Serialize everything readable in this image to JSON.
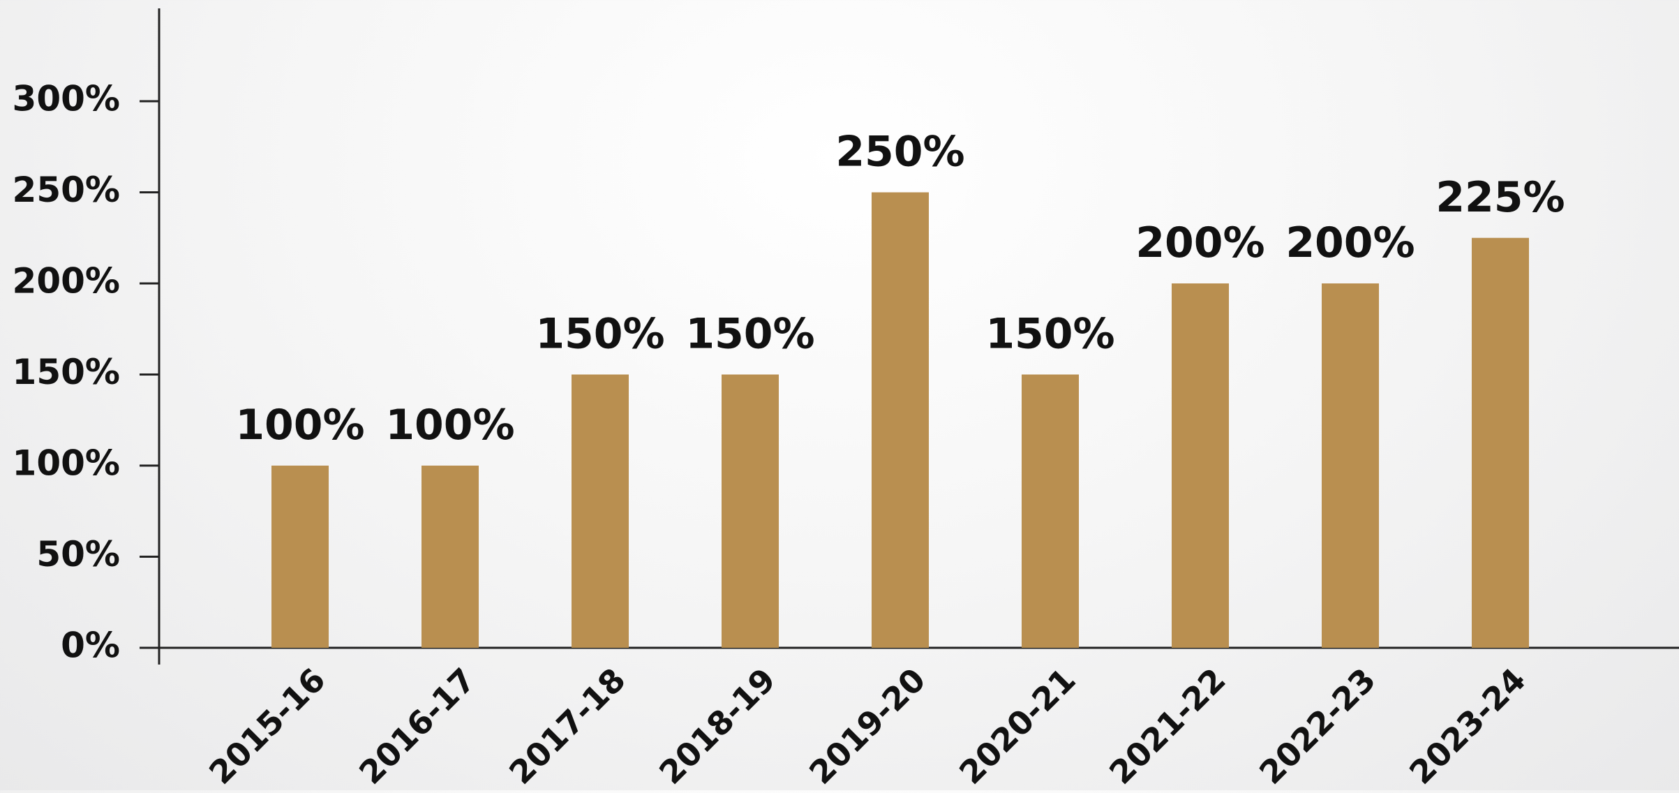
{
  "chart_data": {
    "type": "bar",
    "categories": [
      "2015-16",
      "2016-17",
      "2017-18",
      "2018-19",
      "2019-20",
      "2020-21",
      "2021-22",
      "2022-23",
      "2023-24"
    ],
    "values": [
      100,
      100,
      150,
      150,
      250,
      150,
      200,
      200,
      225
    ],
    "data_labels": [
      "100%",
      "100%",
      "150%",
      "150%",
      "250%",
      "150%",
      "200%",
      "200%",
      "225%"
    ],
    "y_ticks": [
      0,
      50,
      100,
      150,
      200,
      250,
      300
    ],
    "y_tick_labels": [
      "0%",
      "50%",
      "100%",
      "150%",
      "200%",
      "250%",
      "300%"
    ],
    "ylim": [
      0,
      350
    ],
    "bar_color": "#b98f50",
    "grid": false,
    "title": "",
    "xlabel": "",
    "ylabel": ""
  }
}
